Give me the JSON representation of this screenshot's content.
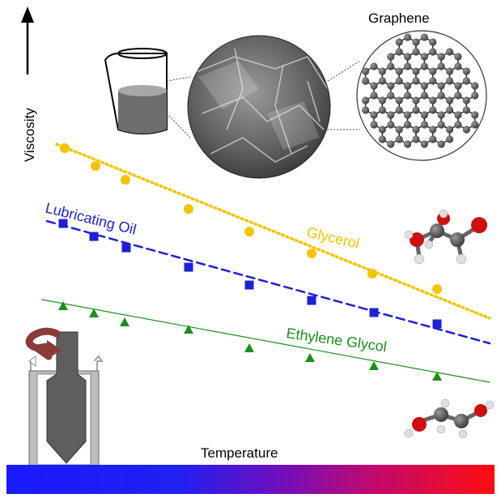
{
  "labels": {
    "y_axis": "Viscosity",
    "x_axis": "Temperature",
    "graphene": "Graphene"
  },
  "series": [
    {
      "key": "glycerol",
      "name": "Glycerol",
      "color": "#f5c400",
      "marker": "circle",
      "line": "dotted"
    },
    {
      "key": "lubricating_oil",
      "name": "Lubricating Oil",
      "color": "#1f1fd6",
      "marker": "square",
      "line": "dashed"
    },
    {
      "key": "ethylene_glycol",
      "name": "Ethylene Glycol",
      "color": "#1a8f1a",
      "marker": "triangle",
      "line": "solid"
    }
  ],
  "colors": {
    "gradient_cold": "#1a1aff",
    "gradient_hot": "#ff0d0d",
    "beaker_liquid": "#6e6e6e",
    "graphene_atom": "#5a5a5a",
    "rotor_arrow": "#8b3a3a"
  },
  "icons": {
    "beaker": "beaker-icon",
    "sem_image": "graphene-sem-micrograph",
    "lattice": "graphene-lattice-icon",
    "glycerol_molecule": "glycerol-molecule-icon",
    "ethylene_glycol_molecule": "ethylene-glycol-molecule-icon",
    "viscometer": "rotational-viscometer-icon"
  }
}
